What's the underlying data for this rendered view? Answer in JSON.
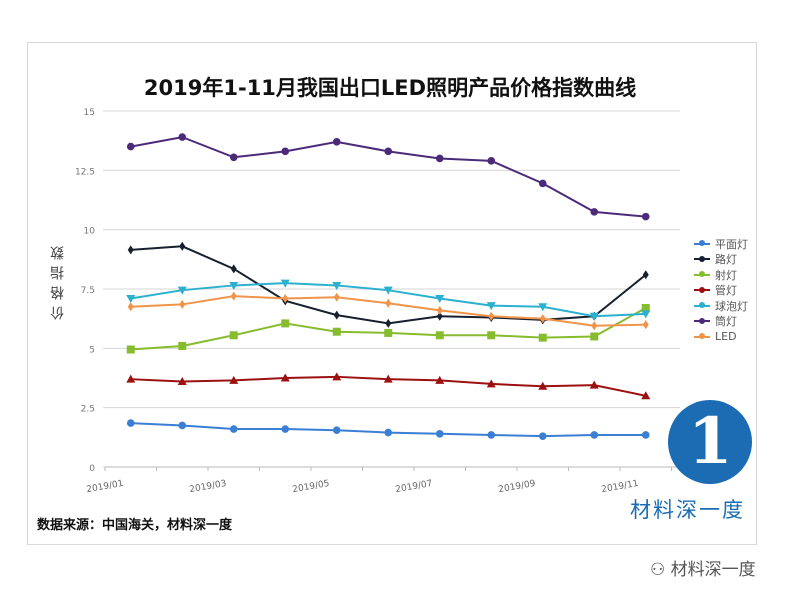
{
  "chart_data": {
    "type": "line",
    "title": "2019年1-11月我国出口LED照明产品价格指数曲线",
    "ylabel": "价格指数",
    "xlabel": "",
    "x": [
      "2019/01",
      "2019/02",
      "2019/03",
      "2019/04",
      "2019/05",
      "2019/06",
      "2019/07",
      "2019/08",
      "2019/09",
      "2019/10",
      "2019/11"
    ],
    "x_tick_labels": [
      "2019/01",
      "2019/03",
      "2019/05",
      "2019/07",
      "2019/09",
      "2019/11"
    ],
    "y_ticks": [
      "0",
      "2.5",
      "5",
      "7.5",
      "10",
      "12.5",
      "15"
    ],
    "ylim": [
      0,
      15
    ],
    "grid": true,
    "legend_position": "right",
    "series": [
      {
        "name": "平面灯",
        "color": "#3a7fd5",
        "marker": "circle",
        "values": [
          1.85,
          1.75,
          1.6,
          1.6,
          1.55,
          1.45,
          1.4,
          1.35,
          1.3,
          1.35,
          1.35
        ]
      },
      {
        "name": "路灯",
        "color": "#17202e",
        "marker": "diamond",
        "values": [
          9.15,
          9.3,
          8.35,
          7.0,
          6.4,
          6.05,
          6.35,
          6.3,
          6.2,
          6.35,
          8.1
        ]
      },
      {
        "name": "射灯",
        "color": "#86bc2e",
        "marker": "square",
        "values": [
          4.95,
          5.1,
          5.55,
          6.05,
          5.7,
          5.65,
          5.55,
          5.55,
          5.45,
          5.5,
          6.7
        ]
      },
      {
        "name": "管灯",
        "color": "#9c1010",
        "marker": "triangle",
        "values": [
          3.7,
          3.6,
          3.65,
          3.75,
          3.8,
          3.7,
          3.65,
          3.5,
          3.4,
          3.45,
          3.0
        ]
      },
      {
        "name": "球泡灯",
        "color": "#2bb0cf",
        "marker": "triangle-down",
        "values": [
          7.1,
          7.45,
          7.65,
          7.75,
          7.65,
          7.45,
          7.1,
          6.8,
          6.75,
          6.35,
          6.45
        ]
      },
      {
        "name": "筒灯",
        "color": "#4b2a7a",
        "marker": "circle",
        "values": [
          13.5,
          13.9,
          13.05,
          13.3,
          13.7,
          13.3,
          13.0,
          12.9,
          11.95,
          10.75,
          10.55
        ]
      },
      {
        "name": "LED",
        "color": "#f0944a",
        "marker": "diamond",
        "values": [
          6.75,
          6.85,
          7.2,
          7.1,
          7.15,
          6.9,
          6.6,
          6.35,
          6.25,
          5.95,
          6.0
        ]
      }
    ]
  },
  "source": "数据来源：中国海关，材料深一度",
  "logo_text": "材料深一度",
  "watermark": "材料深一度"
}
